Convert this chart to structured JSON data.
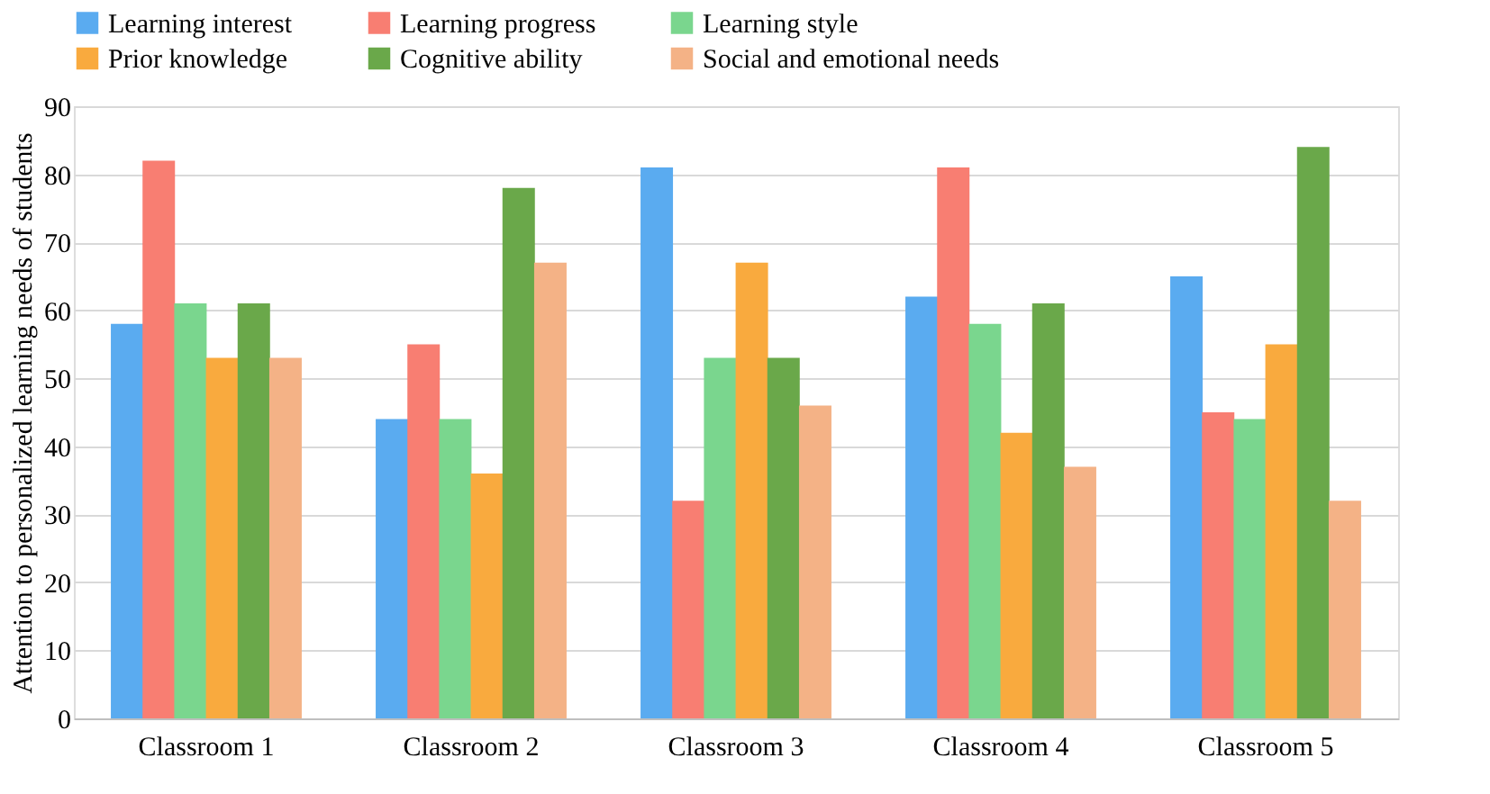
{
  "chart_data": {
    "type": "bar",
    "ylabel": "Attention to personalized learning needs of students",
    "categories": [
      "Classroom 1",
      "Classroom 2",
      "Classroom 3",
      "Classroom 4",
      "Classroom 5"
    ],
    "series": [
      {
        "name": "Learning interest",
        "color": "#5aabf0",
        "values": [
          58,
          44,
          81,
          62,
          65
        ]
      },
      {
        "name": "Learning progress",
        "color": "#f87e72",
        "values": [
          82,
          55,
          32,
          81,
          45
        ]
      },
      {
        "name": "Learning style",
        "color": "#7ad68e",
        "values": [
          61,
          44,
          53,
          58,
          44
        ]
      },
      {
        "name": "Prior knowledge",
        "color": "#f9aa3e",
        "values": [
          53,
          36,
          67,
          42,
          55
        ]
      },
      {
        "name": "Cognitive ability",
        "color": "#6aa84a",
        "values": [
          61,
          78,
          53,
          61,
          84
        ]
      },
      {
        "name": "Social and emotional needs",
        "color": "#f4b286",
        "values": [
          53,
          67,
          46,
          37,
          32
        ]
      }
    ],
    "ylim": [
      0,
      90
    ],
    "yticks": [
      0,
      10,
      20,
      30,
      40,
      50,
      60,
      70,
      80,
      90
    ],
    "grid": "y",
    "legend": "top"
  }
}
